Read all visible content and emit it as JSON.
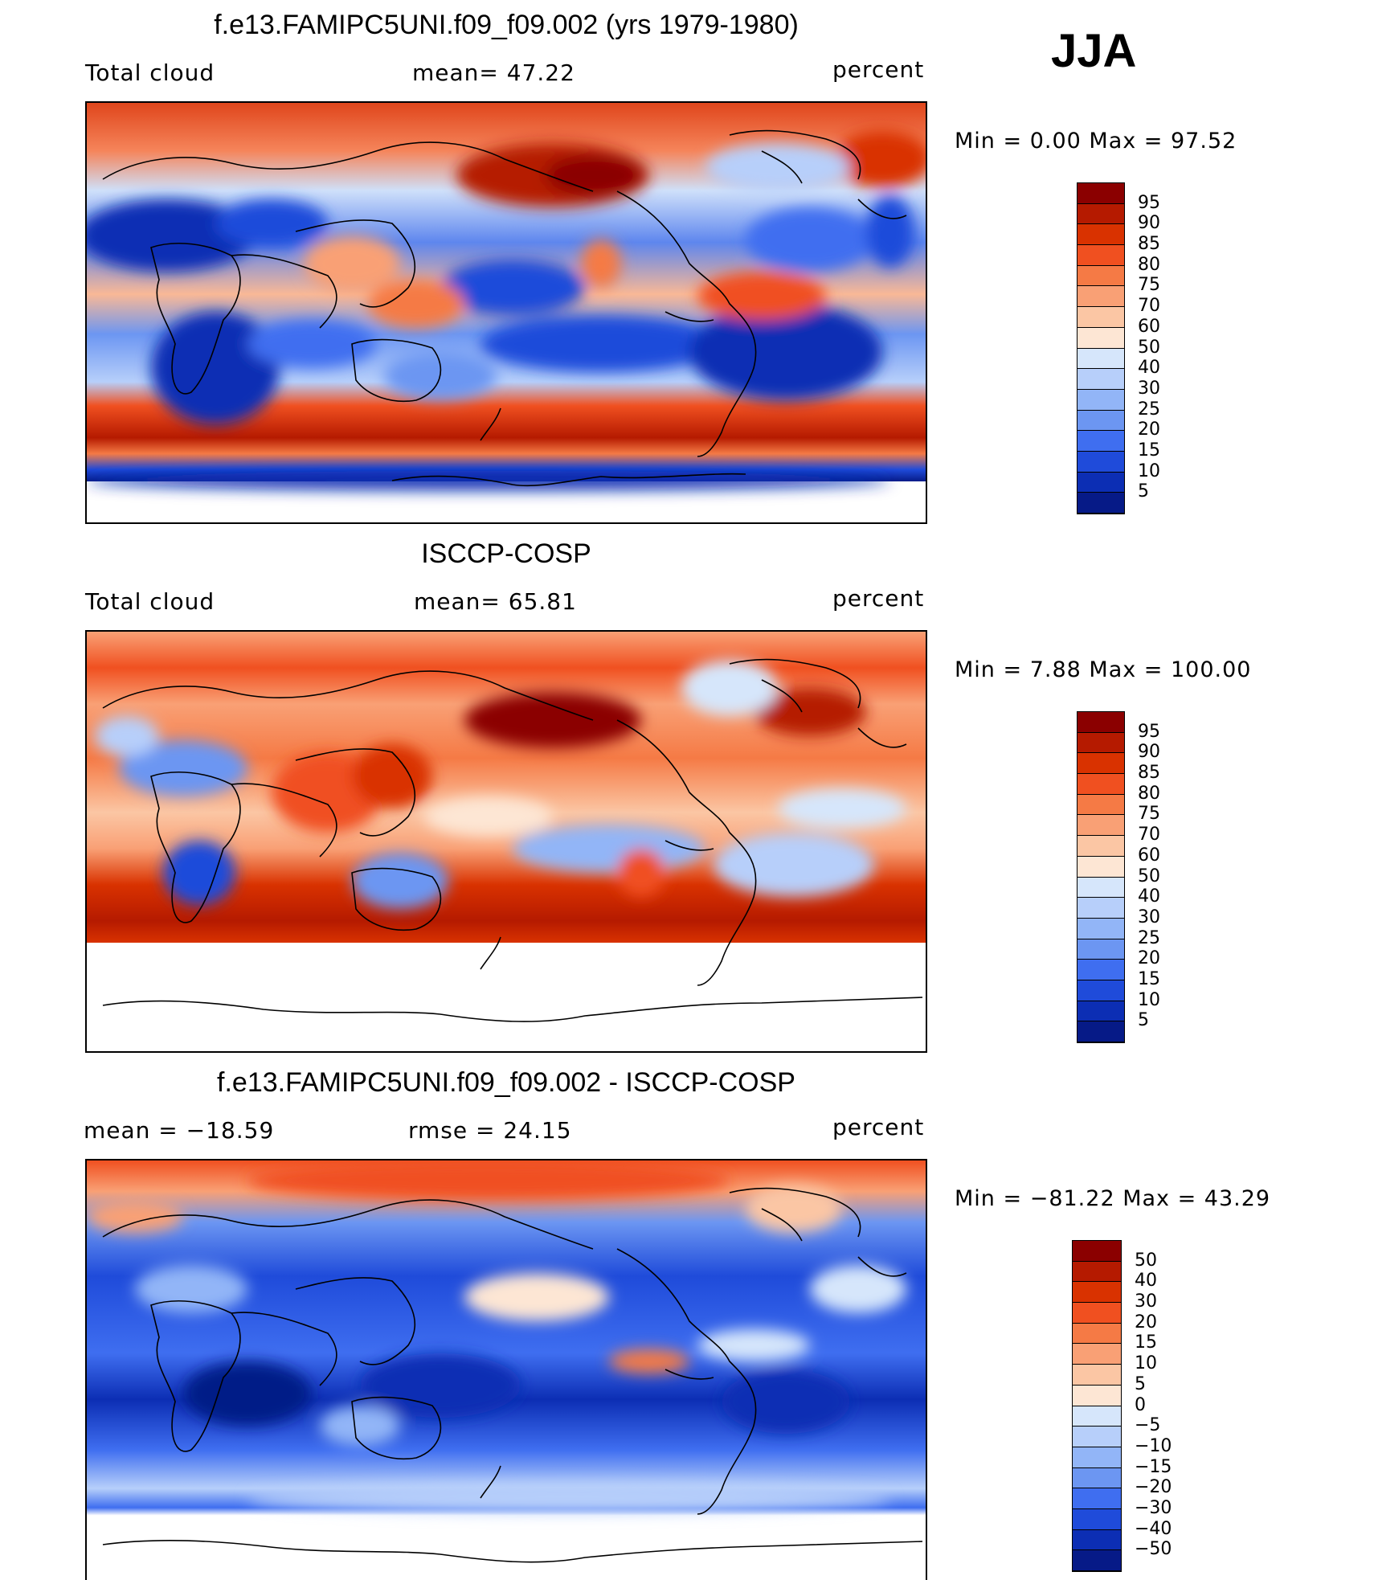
{
  "season": "JJA",
  "panels": [
    {
      "title": "f.e13.FAMIPC5UNI.f09_f09.002 (yrs 1979-1980)",
      "left_label": "Total cloud",
      "center_label": "mean=   47.22",
      "units": "percent",
      "minmax": "Min =    0.00 Max =   97.52",
      "colorbar": {
        "labels": [
          "95",
          "90",
          "85",
          "80",
          "75",
          "70",
          "60",
          "50",
          "40",
          "30",
          "25",
          "20",
          "15",
          "10",
          "5"
        ],
        "colors": [
          "#8b0000",
          "#b51a00",
          "#d93200",
          "#f05020",
          "#f57a45",
          "#f9a075",
          "#fbc6a4",
          "#fde6d4",
          "#d6e6fb",
          "#b7cffa",
          "#92b5f7",
          "#6c96f2",
          "#3f6ef0",
          "#1f4bda",
          "#0c2eb4",
          "#061a87"
        ]
      }
    },
    {
      "title": "ISCCP-COSP",
      "left_label": "Total cloud",
      "center_label": "mean=   65.81",
      "units": "percent",
      "minmax": "Min =    7.88 Max =  100.00",
      "colorbar": {
        "labels": [
          "95",
          "90",
          "85",
          "80",
          "75",
          "70",
          "60",
          "50",
          "40",
          "30",
          "25",
          "20",
          "15",
          "10",
          "5"
        ],
        "colors": [
          "#8b0000",
          "#b51a00",
          "#d93200",
          "#f05020",
          "#f57a45",
          "#f9a075",
          "#fbc6a4",
          "#fde6d4",
          "#d6e6fb",
          "#b7cffa",
          "#92b5f7",
          "#6c96f2",
          "#3f6ef0",
          "#1f4bda",
          "#0c2eb4",
          "#061a87"
        ]
      }
    },
    {
      "title": "f.e13.FAMIPC5UNI.f09_f09.002 - ISCCP-COSP",
      "left_label": "mean = −18.59",
      "center_label": "rmse =   24.15",
      "units": "percent",
      "minmax": "Min = −81.22 Max =   43.29",
      "colorbar": {
        "labels": [
          "50",
          "40",
          "30",
          "20",
          "15",
          "10",
          "5",
          "0",
          "−5",
          "−10",
          "−15",
          "−20",
          "−30",
          "−40",
          "−50"
        ],
        "colors": [
          "#8b0000",
          "#b51a00",
          "#d93200",
          "#f05020",
          "#f57a45",
          "#f9a075",
          "#fbc6a4",
          "#fde6d4",
          "#d6e6fb",
          "#b7cffa",
          "#92b5f7",
          "#6c96f2",
          "#3f6ef0",
          "#1f4bda",
          "#0c2eb4",
          "#061a87"
        ]
      }
    }
  ]
}
